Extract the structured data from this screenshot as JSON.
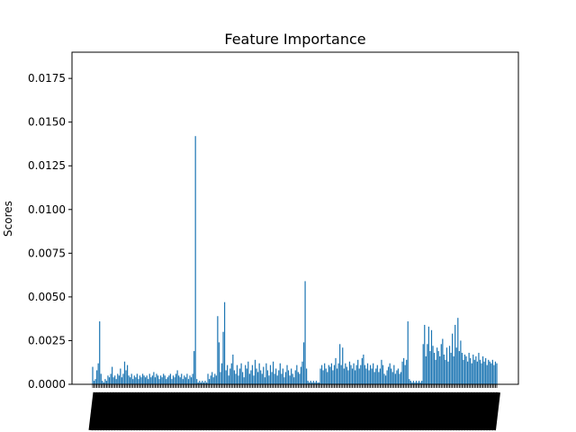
{
  "chart_data": {
    "type": "bar",
    "title": "Feature Importance",
    "xlabel": "",
    "ylabel": "Scores",
    "ylim": [
      0,
      0.019
    ],
    "yticks": [
      "0.0000",
      "0.0025",
      "0.0050",
      "0.0075",
      "0.0100",
      "0.0125",
      "0.0150",
      "0.0175"
    ],
    "ytick_values": [
      0,
      0.0025,
      0.005,
      0.0075,
      0.01,
      0.0125,
      0.015,
      0.0175
    ],
    "bar_color": "#1f77b4",
    "grid": false,
    "values": [
      0.001,
      0.0002,
      0.0003,
      0.0008,
      0.0012,
      0.0036,
      0.0006,
      0.0002,
      0.0001,
      0.0003,
      0.0002,
      0.0005,
      0.0004,
      0.0006,
      0.001,
      0.0004,
      0.0005,
      0.0003,
      0.0006,
      0.0005,
      0.0009,
      0.0004,
      0.0006,
      0.0013,
      0.0008,
      0.0011,
      0.0005,
      0.0004,
      0.0006,
      0.0003,
      0.0005,
      0.0004,
      0.0006,
      0.0003,
      0.0005,
      0.0004,
      0.0006,
      0.0005,
      0.0004,
      0.0005,
      0.0003,
      0.0006,
      0.0004,
      0.0005,
      0.0007,
      0.0004,
      0.0006,
      0.0005,
      0.0003,
      0.0005,
      0.0004,
      0.0006,
      0.0005,
      0.0003,
      0.0004,
      0.0005,
      0.0006,
      0.0003,
      0.0005,
      0.0004,
      0.0006,
      0.0008,
      0.0005,
      0.0004,
      0.0006,
      0.0003,
      0.0005,
      0.0004,
      0.0006,
      0.0003,
      0.0005,
      0.0004,
      0.0006,
      0.0019,
      0.0142,
      0.0003,
      0.0001,
      0.0002,
      0.0001,
      0.0002,
      0.0001,
      0.0002,
      0.0001,
      0.0006,
      0.0003,
      0.0005,
      0.0007,
      0.0004,
      0.0006,
      0.0005,
      0.0039,
      0.0024,
      0.0007,
      0.0012,
      0.003,
      0.0047,
      0.0008,
      0.0011,
      0.0005,
      0.0009,
      0.0012,
      0.0017,
      0.0008,
      0.0006,
      0.0011,
      0.0005,
      0.0009,
      0.0012,
      0.0007,
      0.0004,
      0.0011,
      0.0009,
      0.0013,
      0.0006,
      0.0008,
      0.0011,
      0.0005,
      0.0014,
      0.0009,
      0.0007,
      0.0012,
      0.0008,
      0.0006,
      0.001,
      0.0004,
      0.0012,
      0.0008,
      0.0005,
      0.0011,
      0.0007,
      0.0013,
      0.0006,
      0.0009,
      0.0005,
      0.0008,
      0.0012,
      0.0006,
      0.0009,
      0.0004,
      0.0007,
      0.0011,
      0.0008,
      0.0005,
      0.0009,
      0.0006,
      0.0004,
      0.0008,
      0.0011,
      0.0007,
      0.0006,
      0.001,
      0.0013,
      0.0024,
      0.0059,
      0.0009,
      0.0002,
      0.0001,
      0.0002,
      0.0001,
      0.0002,
      0.0001,
      0.0002,
      0.0001,
      0.0001,
      0.0009,
      0.0011,
      0.0008,
      0.0012,
      0.0009,
      0.0007,
      0.0011,
      0.001,
      0.0012,
      0.0008,
      0.0011,
      0.0015,
      0.0009,
      0.0012,
      0.0023,
      0.0011,
      0.0021,
      0.0009,
      0.0012,
      0.001,
      0.0008,
      0.0013,
      0.0011,
      0.0009,
      0.0012,
      0.0008,
      0.0011,
      0.0014,
      0.0009,
      0.0011,
      0.0015,
      0.0017,
      0.0011,
      0.0009,
      0.0012,
      0.0008,
      0.0011,
      0.0009,
      0.0012,
      0.0007,
      0.0009,
      0.0011,
      0.0007,
      0.0009,
      0.0014,
      0.0011,
      0.0006,
      0.0005,
      0.0008,
      0.001,
      0.0012,
      0.0009,
      0.0007,
      0.0011,
      0.0006,
      0.0008,
      0.0009,
      0.0006,
      0.0007,
      0.0013,
      0.0015,
      0.0011,
      0.0014,
      0.0036,
      0.0003,
      0.0002,
      0.0001,
      0.0002,
      0.0001,
      0.0002,
      0.0001,
      0.0002,
      0.0001,
      0.0002,
      0.0023,
      0.0034,
      0.0016,
      0.0023,
      0.0033,
      0.0019,
      0.0031,
      0.0022,
      0.0018,
      0.0014,
      0.0021,
      0.0019,
      0.0016,
      0.0023,
      0.0026,
      0.0017,
      0.0014,
      0.0021,
      0.0013,
      0.0022,
      0.0018,
      0.0029,
      0.0016,
      0.0034,
      0.0021,
      0.0038,
      0.0019,
      0.0025,
      0.0018,
      0.0014,
      0.0017,
      0.0016,
      0.0013,
      0.0018,
      0.0015,
      0.0012,
      0.0017,
      0.0014,
      0.0016,
      0.0013,
      0.0018,
      0.0014,
      0.0012,
      0.0016,
      0.0013,
      0.0015,
      0.0011,
      0.0014,
      0.0013,
      0.0012,
      0.0014,
      0.0011,
      0.0013,
      0.0012
    ]
  }
}
